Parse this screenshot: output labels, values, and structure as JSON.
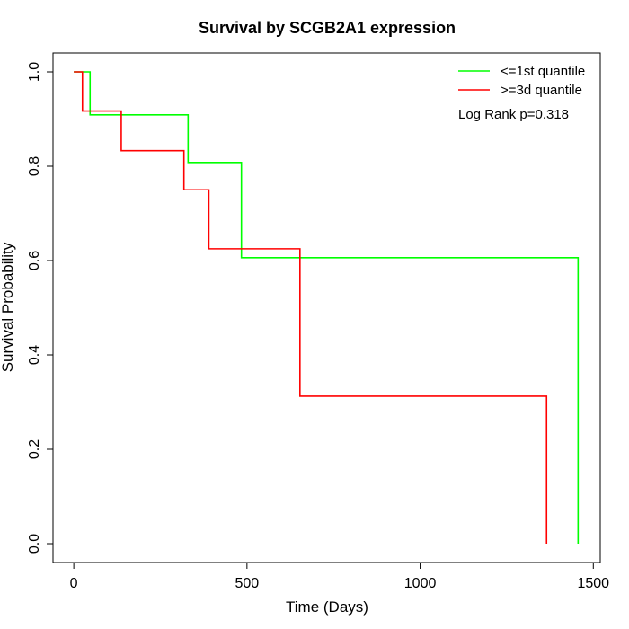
{
  "chart_data": {
    "type": "line",
    "title": "Survival by SCGB2A1 expression",
    "xlabel": "Time (Days)",
    "ylabel": "Survival Probability",
    "xlim": [
      -60,
      1520
    ],
    "ylim": [
      -0.04,
      1.04
    ],
    "xticks": [
      0,
      500,
      1000,
      1500
    ],
    "yticks": [
      0.0,
      0.2,
      0.4,
      0.6,
      0.8,
      1.0
    ],
    "xtick_labels": [
      "0",
      "500",
      "1000",
      "1500"
    ],
    "ytick_labels": [
      "0.0",
      "0.2",
      "0.4",
      "0.6",
      "0.8",
      "1.0"
    ],
    "grid": false,
    "legend_position": "top-right",
    "annotation": "Log Rank p=0.318",
    "series": [
      {
        "name": "<=1st quantile",
        "color": "#00ff00",
        "steps": [
          [
            0,
            1.0
          ],
          [
            47,
            0.909
          ],
          [
            330,
            0.808
          ],
          [
            484,
            0.606
          ],
          [
            1456,
            0.0
          ]
        ]
      },
      {
        "name": ">=3d quantile",
        "color": "#ff0000",
        "steps": [
          [
            0,
            1.0
          ],
          [
            25,
            0.917
          ],
          [
            137,
            0.833
          ],
          [
            318,
            0.75
          ],
          [
            390,
            0.625
          ],
          [
            653,
            0.3125
          ],
          [
            1365,
            0.0
          ]
        ]
      }
    ]
  }
}
